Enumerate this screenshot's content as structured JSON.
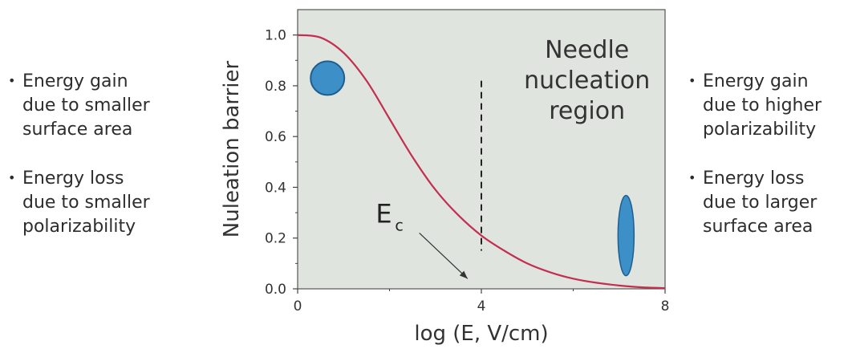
{
  "chart_data": {
    "type": "line",
    "xlabel": "log (E, V/cm)",
    "ylabel": "Nuleation barrier",
    "xlim": [
      0,
      8
    ],
    "ylim": [
      0,
      1.1
    ],
    "x_ticks": [
      "0",
      "4",
      "8"
    ],
    "y_ticks": [
      "0.0",
      "0.2",
      "0.4",
      "0.6",
      "0.8",
      "1.0"
    ],
    "grid": false,
    "background_color": "#dfe4df",
    "series": [
      {
        "color": "#c42e4f",
        "x": [
          0,
          0.5,
          1,
          1.5,
          2,
          2.5,
          3,
          3.5,
          4,
          4.5,
          5,
          5.5,
          6,
          6.5,
          7,
          7.5,
          8
        ],
        "y": [
          1.0,
          0.99,
          0.93,
          0.82,
          0.67,
          0.52,
          0.39,
          0.29,
          0.21,
          0.15,
          0.1,
          0.065,
          0.04,
          0.024,
          0.013,
          0.006,
          0.003
        ]
      }
    ],
    "critical_field": {
      "x": 4,
      "y_range": [
        0.15,
        0.82
      ],
      "style": "dashed",
      "label_main": "E",
      "label_sub": "c"
    },
    "region_label": [
      "Needle",
      "nucleation",
      "region"
    ],
    "markers": [
      {
        "shape": "circle",
        "x": 0.65,
        "y": 0.83,
        "color": "#3d8fc7",
        "icon": "sphere-nucleus-icon"
      },
      {
        "shape": "needle",
        "x": 7.15,
        "y": 0.21,
        "color": "#3d8fc7",
        "icon": "needle-nucleus-icon"
      }
    ]
  },
  "left_notes": [
    [
      "Energy gain",
      "due to smaller",
      "surface area"
    ],
    [
      "Energy loss",
      "due to smaller",
      "polarizability"
    ]
  ],
  "right_notes": [
    [
      "Energy gain",
      "due to higher",
      "polarizability"
    ],
    [
      "Energy loss",
      "due to larger",
      "surface area"
    ]
  ]
}
